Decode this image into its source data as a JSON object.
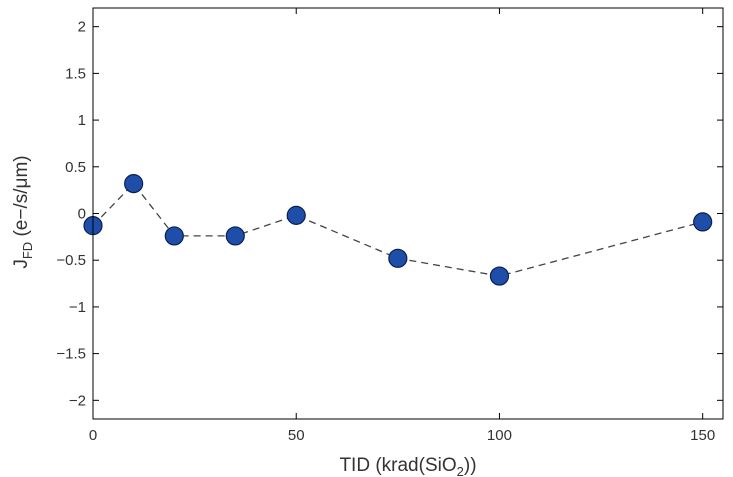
{
  "chart_data": {
    "type": "scatter",
    "xlabel_main": "TID (krad(SiO",
    "xlabel_sub": "2",
    "xlabel_tail": "))",
    "ylabel_main": "J",
    "ylabel_sub": "FD",
    "ylabel_tail": " (e−/s/μm)",
    "xlim": [
      0,
      155
    ],
    "ylim": [
      -2.2,
      2.2
    ],
    "x_ticks": [
      0,
      50,
      100,
      150
    ],
    "x_tick_labels": [
      "0",
      "50",
      "100",
      "150"
    ],
    "y_ticks": [
      2,
      1.5,
      1,
      0.5,
      0,
      -0.5,
      -1,
      -1.5,
      -2
    ],
    "y_tick_labels": [
      "2",
      "1.5",
      "1",
      "0.5",
      "0",
      "−0.5",
      "−1",
      "−1.5",
      "−2"
    ],
    "grid": false,
    "legend": "none",
    "series": [
      {
        "x": [
          0,
          10,
          20,
          35,
          50,
          75,
          100,
          150
        ],
        "y": [
          -0.13,
          0.32,
          -0.24,
          -0.24,
          -0.02,
          -0.48,
          -0.67,
          -0.09
        ],
        "marker_color": "#1f4ea8",
        "line_color": "#444444",
        "line_style": "dashed"
      }
    ]
  }
}
